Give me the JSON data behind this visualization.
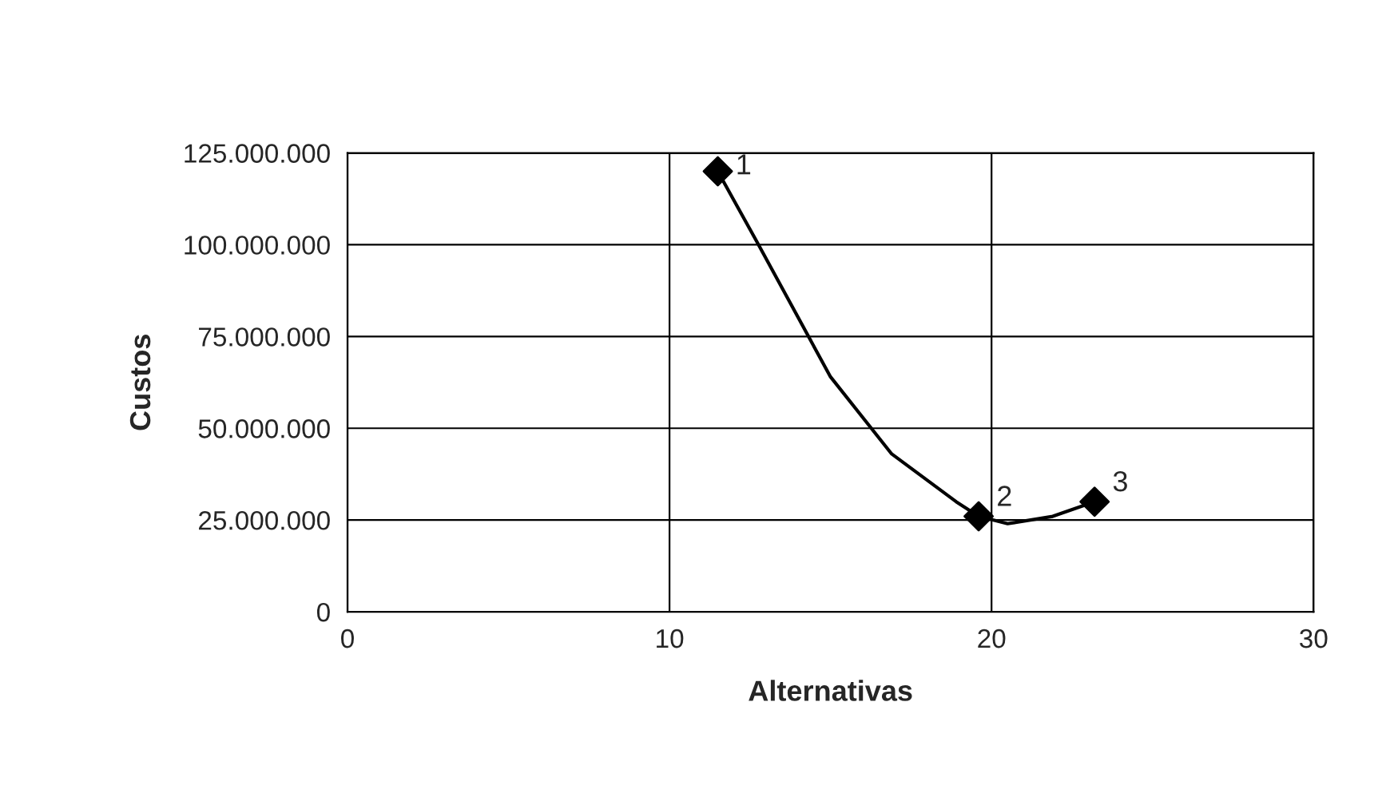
{
  "chart_data": {
    "type": "scatter",
    "xlabel": "Alternativas",
    "ylabel": "Custos",
    "series": [
      {
        "type": "line",
        "color": "#000000",
        "marker": "none",
        "x": [
          11.5,
          12.7,
          15,
          16.9,
          18.9,
          19.6,
          20.5,
          21.9,
          23.2
        ],
        "values": [
          120000000,
          101000000,
          64000000,
          43000000,
          30000000,
          26000000,
          24000000,
          26000000,
          30000000
        ]
      },
      {
        "color": "#000000",
        "marker": "diamond",
        "x": [
          11.5,
          19.6,
          23.2
        ],
        "values": [
          120000000,
          26000000,
          30000000
        ]
      }
    ],
    "annotations": [
      {
        "text": "1",
        "x": 11.5,
        "y": 120000000
      },
      {
        "text": "2",
        "x": 19.6,
        "y": 26000000
      },
      {
        "text": "3",
        "x": 23.2,
        "y": 30000000
      }
    ],
    "xlim": [
      0,
      30
    ],
    "xticks": [
      0,
      10,
      20,
      30
    ],
    "ylim": [
      0,
      125000000
    ],
    "yticks": [
      {
        "value": 0,
        "label": "0"
      },
      {
        "value": 25000000,
        "label": "25.000.000"
      },
      {
        "value": 50000000,
        "label": "50.000.000"
      },
      {
        "value": 75000000,
        "label": "75.000.000"
      },
      {
        "value": 100000000,
        "label": "100.000.000"
      },
      {
        "value": 125000000,
        "label": "125.000.000"
      }
    ],
    "grid": true,
    "legend": false
  }
}
